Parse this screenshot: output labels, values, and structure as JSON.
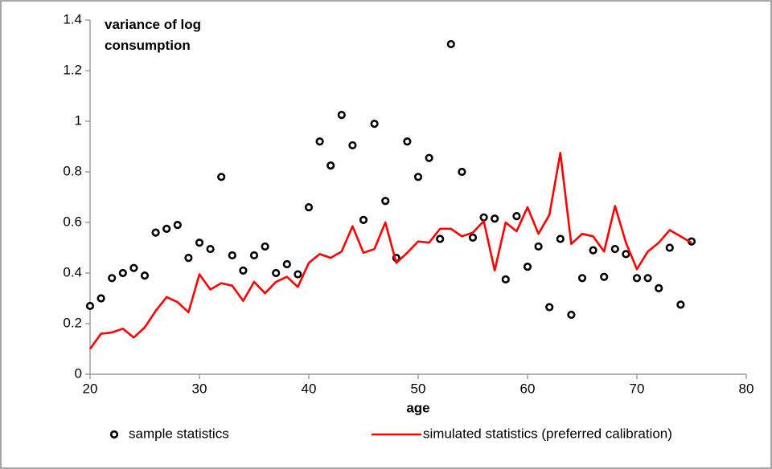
{
  "chart_data": {
    "type": "line",
    "ylabel": "variance of log consumption",
    "xlabel": "age",
    "x": [
      20,
      21,
      22,
      23,
      24,
      25,
      26,
      27,
      28,
      29,
      30,
      31,
      32,
      33,
      34,
      35,
      36,
      37,
      38,
      39,
      40,
      41,
      42,
      43,
      44,
      45,
      46,
      47,
      48,
      49,
      50,
      51,
      52,
      53,
      54,
      55,
      56,
      57,
      58,
      59,
      60,
      61,
      62,
      63,
      64,
      65,
      66,
      67,
      68,
      69,
      70,
      71,
      72,
      73,
      74,
      75
    ],
    "series": [
      {
        "name": "sample statistics",
        "type": "scatter",
        "color": "#000000",
        "values": [
          0.27,
          0.3,
          0.38,
          0.4,
          0.42,
          0.39,
          0.56,
          0.575,
          0.59,
          0.46,
          0.52,
          0.495,
          0.78,
          0.47,
          0.41,
          0.47,
          0.505,
          0.4,
          0.435,
          0.395,
          0.66,
          0.92,
          0.825,
          1.025,
          0.905,
          0.61,
          0.99,
          0.685,
          0.46,
          0.92,
          0.78,
          0.855,
          0.535,
          1.305,
          0.8,
          0.54,
          0.62,
          0.615,
          0.375,
          0.625,
          0.425,
          0.505,
          0.265,
          0.535,
          0.235,
          0.38,
          0.49,
          0.385,
          0.495,
          0.475,
          0.38,
          0.38,
          0.34,
          0.5,
          0.275,
          0.525
        ]
      },
      {
        "name": "simulated statistics (preferred calibration)",
        "type": "line",
        "color": "#ff0000",
        "values": [
          0.1,
          0.16,
          0.165,
          0.18,
          0.145,
          0.185,
          0.25,
          0.305,
          0.285,
          0.245,
          0.395,
          0.335,
          0.36,
          0.35,
          0.29,
          0.365,
          0.32,
          0.365,
          0.385,
          0.345,
          0.44,
          0.475,
          0.46,
          0.485,
          0.585,
          0.48,
          0.495,
          0.6,
          0.44,
          0.48,
          0.525,
          0.52,
          0.575,
          0.575,
          0.545,
          0.56,
          0.605,
          0.41,
          0.6,
          0.565,
          0.66,
          0.555,
          0.63,
          0.875,
          0.515,
          0.555,
          0.545,
          0.485,
          0.665,
          0.52,
          0.415,
          0.485,
          0.52,
          0.57,
          0.545,
          0.52
        ]
      }
    ],
    "xlim": [
      20,
      80
    ],
    "xticks": [
      20,
      30,
      40,
      50,
      60,
      70,
      80
    ],
    "ylim": [
      0,
      1.4
    ],
    "yticks": [
      0,
      0.2,
      0.4,
      0.6,
      0.8,
      1,
      1.2,
      1.4
    ],
    "grid": false,
    "legend": "bottom"
  }
}
